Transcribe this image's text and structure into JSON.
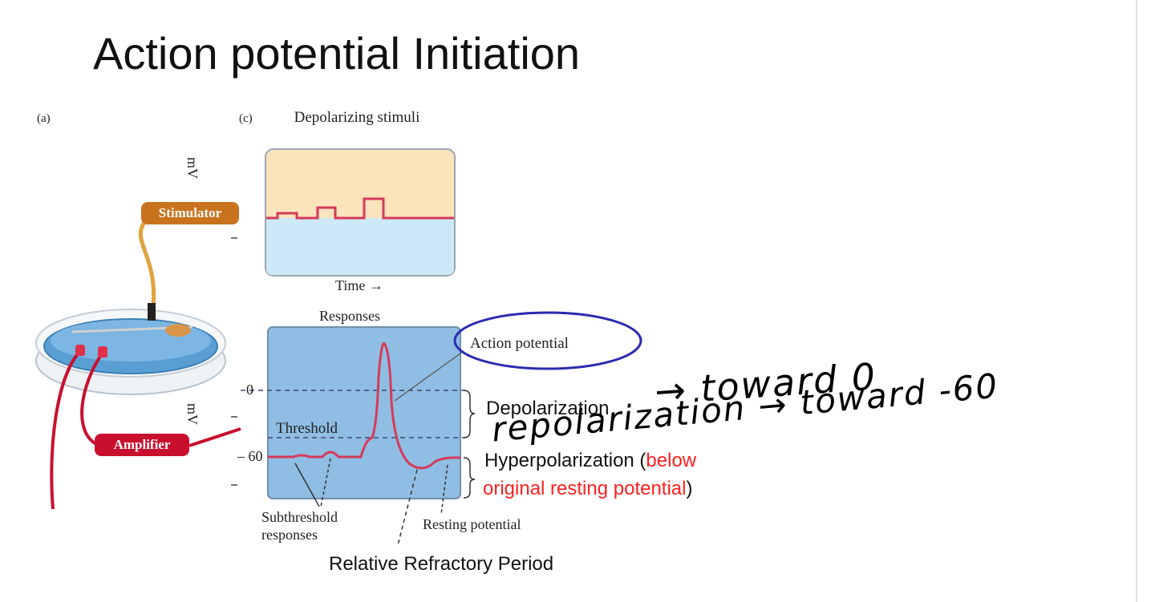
{
  "slide": {
    "title": "Action potential Initiation"
  },
  "figure": {
    "panel_a_label": "(a)",
    "panel_c_label": "(c)",
    "stimulator_label": "Stimulator",
    "amplifier_label": "Amplifier",
    "stimuli_heading": "Depolarizing stimuli",
    "time_label": "Time →",
    "responses_heading": "Responses",
    "mv_label": "mV",
    "zero_tick": "0",
    "minus60_tick": "– 60",
    "threshold_label": "Threshold",
    "action_potential_label": "Action potential",
    "subthreshold_label_line1": "Subthreshold",
    "subthreshold_label_line2": "responses",
    "resting_label": "Resting potential"
  },
  "annotations": {
    "depolarization": "Depolarization",
    "hyperpolarization": "Hyperpolarization (",
    "below": "below",
    "original": "original resting potential",
    "close_paren": ")",
    "relative_refractory": "Relative Refractory Period",
    "handwritten_1": "→ toward 0",
    "handwritten_2": "repolarization → toward -60"
  },
  "colors": {
    "stimulus_bg": "#fbe3bc",
    "stimulus_lower": "#cde8f6",
    "response_bg": "#8fbde3",
    "trace": "#d63a5a",
    "ellipse": "#2b2bb0",
    "stimulator": "#c9731f",
    "amplifier": "#c8102e",
    "highlight_red": "#ff2020"
  }
}
